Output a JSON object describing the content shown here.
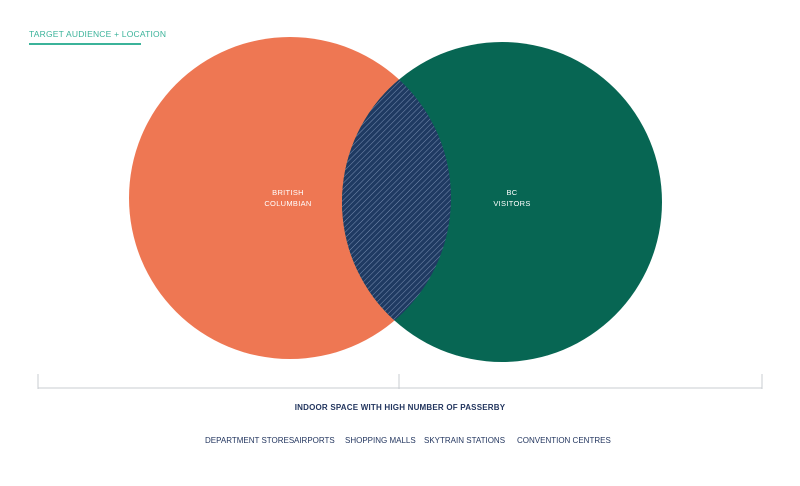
{
  "header": {
    "title": "TARGET AUDIENCE + LOCATION"
  },
  "colors": {
    "accent": "#3bb39a",
    "left_circle": "#ee7753",
    "right_circle": "#076653",
    "overlap": "#1f3a62",
    "text_dark": "#23365f"
  },
  "venn": {
    "left_label_line1": "BRITISH",
    "left_label_line2": "COLUMBIAN",
    "right_label_line1": "BC",
    "right_label_line2": "VISITORS"
  },
  "footer": {
    "title": "INDOOR SPACE WITH HIGH NUMBER OF PASSERBY",
    "locations": [
      "DEPARTMENT STORES",
      "AIRPORTS",
      "SHOPPING MALLS",
      "SKYTRAIN STATIONS",
      "CONVENTION CENTRES"
    ]
  }
}
